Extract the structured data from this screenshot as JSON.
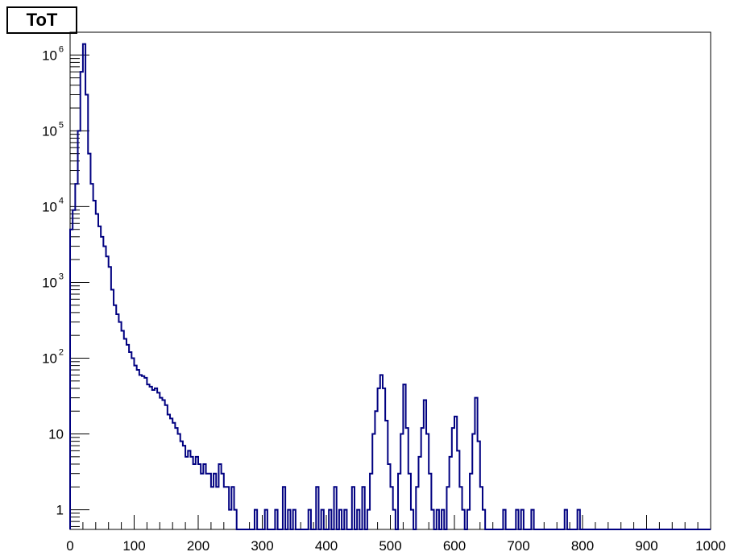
{
  "chart_data": {
    "type": "histogram",
    "title": "ToT",
    "xlim": [
      0,
      1000
    ],
    "x_ticks": [
      "0",
      "100",
      "200",
      "300",
      "400",
      "500",
      "600",
      "700",
      "800",
      "900",
      "1000"
    ],
    "y_scale": "log",
    "ylim": [
      0.55,
      2000000
    ],
    "y_ticks": [
      {
        "value": 1,
        "label": "1"
      },
      {
        "value": 10,
        "label": "10"
      },
      {
        "value": 100,
        "label": "10",
        "exp": "2"
      },
      {
        "value": 1000,
        "label": "10",
        "exp": "3"
      },
      {
        "value": 10000,
        "label": "10",
        "exp": "4"
      },
      {
        "value": 100000,
        "label": "10",
        "exp": "5"
      },
      {
        "value": 1000000,
        "label": "10",
        "exp": "6"
      }
    ],
    "grid": false,
    "line_color": "#000080",
    "bins": [
      {
        "x": 2,
        "y": 5000
      },
      {
        "x": 6,
        "y": 9000
      },
      {
        "x": 10,
        "y": 20000
      },
      {
        "x": 14,
        "y": 100000
      },
      {
        "x": 18,
        "y": 600000
      },
      {
        "x": 22,
        "y": 1400000
      },
      {
        "x": 26,
        "y": 300000
      },
      {
        "x": 30,
        "y": 50000
      },
      {
        "x": 34,
        "y": 20000
      },
      {
        "x": 38,
        "y": 12000
      },
      {
        "x": 42,
        "y": 8000
      },
      {
        "x": 46,
        "y": 5500
      },
      {
        "x": 50,
        "y": 4000
      },
      {
        "x": 54,
        "y": 3000
      },
      {
        "x": 58,
        "y": 2200
      },
      {
        "x": 62,
        "y": 1600
      },
      {
        "x": 66,
        "y": 800
      },
      {
        "x": 70,
        "y": 500
      },
      {
        "x": 74,
        "y": 380
      },
      {
        "x": 78,
        "y": 300
      },
      {
        "x": 82,
        "y": 230
      },
      {
        "x": 86,
        "y": 180
      },
      {
        "x": 90,
        "y": 150
      },
      {
        "x": 94,
        "y": 120
      },
      {
        "x": 98,
        "y": 100
      },
      {
        "x": 102,
        "y": 80
      },
      {
        "x": 106,
        "y": 70
      },
      {
        "x": 110,
        "y": 60
      },
      {
        "x": 114,
        "y": 58
      },
      {
        "x": 118,
        "y": 55
      },
      {
        "x": 122,
        "y": 45
      },
      {
        "x": 126,
        "y": 42
      },
      {
        "x": 130,
        "y": 38
      },
      {
        "x": 134,
        "y": 40
      },
      {
        "x": 138,
        "y": 35
      },
      {
        "x": 142,
        "y": 30
      },
      {
        "x": 146,
        "y": 28
      },
      {
        "x": 150,
        "y": 24
      },
      {
        "x": 154,
        "y": 18
      },
      {
        "x": 158,
        "y": 16
      },
      {
        "x": 162,
        "y": 14
      },
      {
        "x": 166,
        "y": 12
      },
      {
        "x": 170,
        "y": 10
      },
      {
        "x": 174,
        "y": 8
      },
      {
        "x": 178,
        "y": 7
      },
      {
        "x": 182,
        "y": 5
      },
      {
        "x": 186,
        "y": 6
      },
      {
        "x": 190,
        "y": 5
      },
      {
        "x": 194,
        "y": 4
      },
      {
        "x": 198,
        "y": 5
      },
      {
        "x": 202,
        "y": 4
      },
      {
        "x": 206,
        "y": 3
      },
      {
        "x": 210,
        "y": 4
      },
      {
        "x": 214,
        "y": 3
      },
      {
        "x": 218,
        "y": 3
      },
      {
        "x": 222,
        "y": 2
      },
      {
        "x": 226,
        "y": 3
      },
      {
        "x": 230,
        "y": 2
      },
      {
        "x": 234,
        "y": 4
      },
      {
        "x": 238,
        "y": 3
      },
      {
        "x": 242,
        "y": 2
      },
      {
        "x": 246,
        "y": 2
      },
      {
        "x": 250,
        "y": 1
      },
      {
        "x": 254,
        "y": 2
      },
      {
        "x": 258,
        "y": 1
      },
      {
        "x": 290,
        "y": 1
      },
      {
        "x": 306,
        "y": 1
      },
      {
        "x": 322,
        "y": 1
      },
      {
        "x": 334,
        "y": 2
      },
      {
        "x": 342,
        "y": 1
      },
      {
        "x": 350,
        "y": 1
      },
      {
        "x": 374,
        "y": 1
      },
      {
        "x": 386,
        "y": 2
      },
      {
        "x": 394,
        "y": 1
      },
      {
        "x": 406,
        "y": 1
      },
      {
        "x": 414,
        "y": 2
      },
      {
        "x": 422,
        "y": 1
      },
      {
        "x": 430,
        "y": 1
      },
      {
        "x": 442,
        "y": 2
      },
      {
        "x": 450,
        "y": 1
      },
      {
        "x": 458,
        "y": 2
      },
      {
        "x": 466,
        "y": 1
      },
      {
        "x": 470,
        "y": 3
      },
      {
        "x": 474,
        "y": 10
      },
      {
        "x": 478,
        "y": 20
      },
      {
        "x": 482,
        "y": 40
      },
      {
        "x": 486,
        "y": 60
      },
      {
        "x": 490,
        "y": 40
      },
      {
        "x": 494,
        "y": 15
      },
      {
        "x": 498,
        "y": 4
      },
      {
        "x": 502,
        "y": 2
      },
      {
        "x": 506,
        "y": 1
      },
      {
        "x": 514,
        "y": 3
      },
      {
        "x": 518,
        "y": 10
      },
      {
        "x": 522,
        "y": 45
      },
      {
        "x": 526,
        "y": 12
      },
      {
        "x": 530,
        "y": 3
      },
      {
        "x": 534,
        "y": 1
      },
      {
        "x": 542,
        "y": 2
      },
      {
        "x": 546,
        "y": 5
      },
      {
        "x": 550,
        "y": 12
      },
      {
        "x": 554,
        "y": 28
      },
      {
        "x": 558,
        "y": 10
      },
      {
        "x": 562,
        "y": 3
      },
      {
        "x": 566,
        "y": 1
      },
      {
        "x": 574,
        "y": 1
      },
      {
        "x": 582,
        "y": 1
      },
      {
        "x": 590,
        "y": 2
      },
      {
        "x": 594,
        "y": 5
      },
      {
        "x": 598,
        "y": 12
      },
      {
        "x": 602,
        "y": 17
      },
      {
        "x": 606,
        "y": 6
      },
      {
        "x": 610,
        "y": 2
      },
      {
        "x": 614,
        "y": 1
      },
      {
        "x": 622,
        "y": 1
      },
      {
        "x": 626,
        "y": 3
      },
      {
        "x": 630,
        "y": 10
      },
      {
        "x": 634,
        "y": 30
      },
      {
        "x": 638,
        "y": 8
      },
      {
        "x": 642,
        "y": 2
      },
      {
        "x": 646,
        "y": 1
      },
      {
        "x": 678,
        "y": 1
      },
      {
        "x": 698,
        "y": 1
      },
      {
        "x": 706,
        "y": 1
      },
      {
        "x": 722,
        "y": 1
      },
      {
        "x": 774,
        "y": 1
      },
      {
        "x": 794,
        "y": 1
      }
    ]
  }
}
